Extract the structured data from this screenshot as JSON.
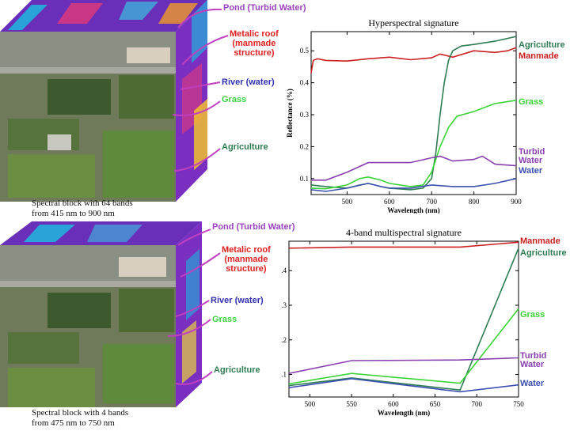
{
  "colors": {
    "agriculture": "#2e7d52",
    "manmade": "#cc1f1f",
    "grass": "#39d435",
    "turbid": "#8a3fb0",
    "water": "#3a4fb0"
  },
  "top": {
    "caption_line1": "Spectral block with 64 bands",
    "caption_line2": "from 415 nm to 900 nm",
    "labels": {
      "pond": "Pond (Turbid Water)",
      "roof_line1": "Metalic roof",
      "roof_line2": "(manmade",
      "roof_line3": "structure)",
      "river": "River (water)",
      "grass": "Grass",
      "agriculture": "Agriculture"
    }
  },
  "bottom": {
    "caption_line1": "Spectral block with 4 bands",
    "caption_line2": "from 475 nm to 750 nm",
    "labels": {
      "pond": "Pond (Turbid Water)",
      "roof_line1": "Metalic roof",
      "roof_line2": "(manmade",
      "roof_line3": "structure)",
      "river": "River (water)",
      "grass": "Grass",
      "agriculture": "Agriculture"
    }
  },
  "chart_data": [
    {
      "type": "line",
      "title": "Hyperspectral signature",
      "xlabel": "Wavelength (nm)",
      "ylabel": "Reflectance (%)",
      "xlim": [
        415,
        900
      ],
      "ylim": [
        0.05,
        0.56
      ],
      "xticks": [
        500,
        600,
        700,
        800,
        900
      ],
      "yticks": [
        0.1,
        0.2,
        0.3,
        0.4,
        0.5
      ],
      "series": [
        {
          "key": "manmade",
          "name": "Manmade",
          "x": [
            415,
            420,
            430,
            450,
            500,
            550,
            600,
            650,
            700,
            720,
            750,
            800,
            850,
            880,
            900
          ],
          "y": [
            0.43,
            0.47,
            0.475,
            0.47,
            0.468,
            0.475,
            0.48,
            0.472,
            0.478,
            0.49,
            0.48,
            0.5,
            0.495,
            0.5,
            0.51
          ]
        },
        {
          "key": "agriculture",
          "name": "Agriculture",
          "x": [
            415,
            450,
            500,
            530,
            550,
            580,
            600,
            650,
            680,
            700,
            710,
            720,
            730,
            740,
            750,
            770,
            800,
            850,
            900
          ],
          "y": [
            0.08,
            0.075,
            0.07,
            0.08,
            0.085,
            0.075,
            0.07,
            0.065,
            0.07,
            0.1,
            0.18,
            0.3,
            0.4,
            0.47,
            0.5,
            0.515,
            0.52,
            0.53,
            0.545
          ]
        },
        {
          "key": "grass",
          "name": "Grass",
          "x": [
            415,
            450,
            500,
            530,
            550,
            580,
            600,
            650,
            680,
            700,
            720,
            740,
            760,
            800,
            850,
            900
          ],
          "y": [
            0.07,
            0.068,
            0.08,
            0.1,
            0.105,
            0.095,
            0.085,
            0.075,
            0.08,
            0.12,
            0.2,
            0.26,
            0.295,
            0.31,
            0.335,
            0.345
          ]
        },
        {
          "key": "turbid",
          "name": "Turbid Water",
          "x": [
            415,
            450,
            500,
            550,
            600,
            650,
            700,
            720,
            750,
            800,
            820,
            850,
            900
          ],
          "y": [
            0.095,
            0.095,
            0.12,
            0.15,
            0.15,
            0.15,
            0.165,
            0.17,
            0.155,
            0.16,
            0.17,
            0.145,
            0.14
          ]
        },
        {
          "key": "water",
          "name": "Water",
          "x": [
            415,
            450,
            500,
            550,
            580,
            600,
            650,
            700,
            750,
            800,
            850,
            900
          ],
          "y": [
            0.065,
            0.06,
            0.07,
            0.085,
            0.075,
            0.07,
            0.07,
            0.08,
            0.075,
            0.075,
            0.085,
            0.1
          ]
        }
      ],
      "legend": [
        "Agriculture",
        "Manmade",
        "Grass",
        "Turbid",
        "Water",
        "Water"
      ]
    },
    {
      "type": "line",
      "title": "4-band multispectral signature",
      "xlabel": "Wavelength (nm)",
      "ylabel": "Reflectance (%)",
      "xlim": [
        475,
        750
      ],
      "ylim": [
        0.035,
        0.485
      ],
      "xticks": [
        500,
        550,
        600,
        650,
        700,
        750
      ],
      "yticks": [
        0.1,
        0.2,
        0.3,
        0.4
      ],
      "series": [
        {
          "key": "manmade",
          "name": "Manmade",
          "x": [
            475,
            550,
            680,
            750
          ],
          "y": [
            0.465,
            0.468,
            0.468,
            0.482
          ]
        },
        {
          "key": "agriculture",
          "name": "Agriculture",
          "x": [
            475,
            550,
            680,
            750
          ],
          "y": [
            0.068,
            0.09,
            0.055,
            0.465
          ]
        },
        {
          "key": "grass",
          "name": "Grass",
          "x": [
            475,
            550,
            680,
            750
          ],
          "y": [
            0.073,
            0.103,
            0.075,
            0.29
          ]
        },
        {
          "key": "turbid",
          "name": "Turbid Water",
          "x": [
            475,
            550,
            680,
            750
          ],
          "y": [
            0.103,
            0.14,
            0.142,
            0.148
          ]
        },
        {
          "key": "water",
          "name": "Water",
          "x": [
            475,
            550,
            680,
            750
          ],
          "y": [
            0.062,
            0.088,
            0.05,
            0.07
          ]
        }
      ],
      "legend": [
        "Manmade",
        "Agriculture",
        "Grass",
        "Turbid",
        "Water",
        "Water"
      ]
    }
  ]
}
